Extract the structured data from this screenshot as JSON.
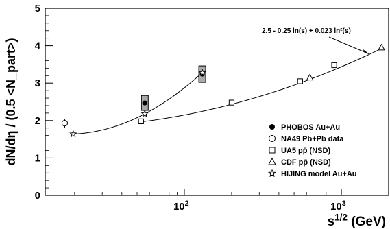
{
  "chart_data": {
    "type": "scatter",
    "x_scale": "log",
    "xlim": [
      13,
      2000
    ],
    "ylim": [
      0,
      5
    ],
    "grid": false,
    "legend_position": "bottom-right",
    "xlabel": "s^{1/2} (GeV)",
    "ylabel": "dN/dη / (0.5 <N_part>)",
    "y_ticks": [
      0,
      1,
      2,
      3,
      4,
      5
    ],
    "x_tick_labels": [
      "10^{2}",
      "10^{3}"
    ],
    "annotation": "2.5 - 0.25 ln(s) + 0.023 ln²(s)",
    "series": [
      {
        "name": "PHOBOS Au+Au",
        "marker": "filled-circle",
        "x": [
          56,
          130
        ],
        "y": [
          2.47,
          3.24
        ],
        "sys_err": [
          [
            2.27,
            2.67
          ],
          [
            3.02,
            3.46
          ]
        ]
      },
      {
        "name": "NA49 Pb+Pb data",
        "marker": "open-circle",
        "x": [
          17.3
        ],
        "y": [
          1.93
        ],
        "err": [
          0.12
        ]
      },
      {
        "name": "UA5 pp̄ (NSD)",
        "marker": "open-square",
        "x": [
          53,
          200,
          546,
          900
        ],
        "y": [
          1.98,
          2.48,
          3.05,
          3.48
        ]
      },
      {
        "name": "CDF pp̄ (NSD)",
        "marker": "open-triangle",
        "x": [
          630,
          1800
        ],
        "y": [
          3.15,
          3.95
        ]
      },
      {
        "name": "HIJING model Au+Au",
        "marker": "open-star",
        "x": [
          19.6,
          56,
          130
        ],
        "y": [
          1.64,
          2.18,
          3.28
        ]
      }
    ],
    "fit_curves": [
      {
        "name": "pp-fit",
        "x_range": [
          53,
          1800
        ]
      },
      {
        "name": "hijing-trend",
        "x": [
          19.6,
          56,
          130
        ],
        "y": [
          1.64,
          2.18,
          3.28
        ]
      }
    ]
  }
}
